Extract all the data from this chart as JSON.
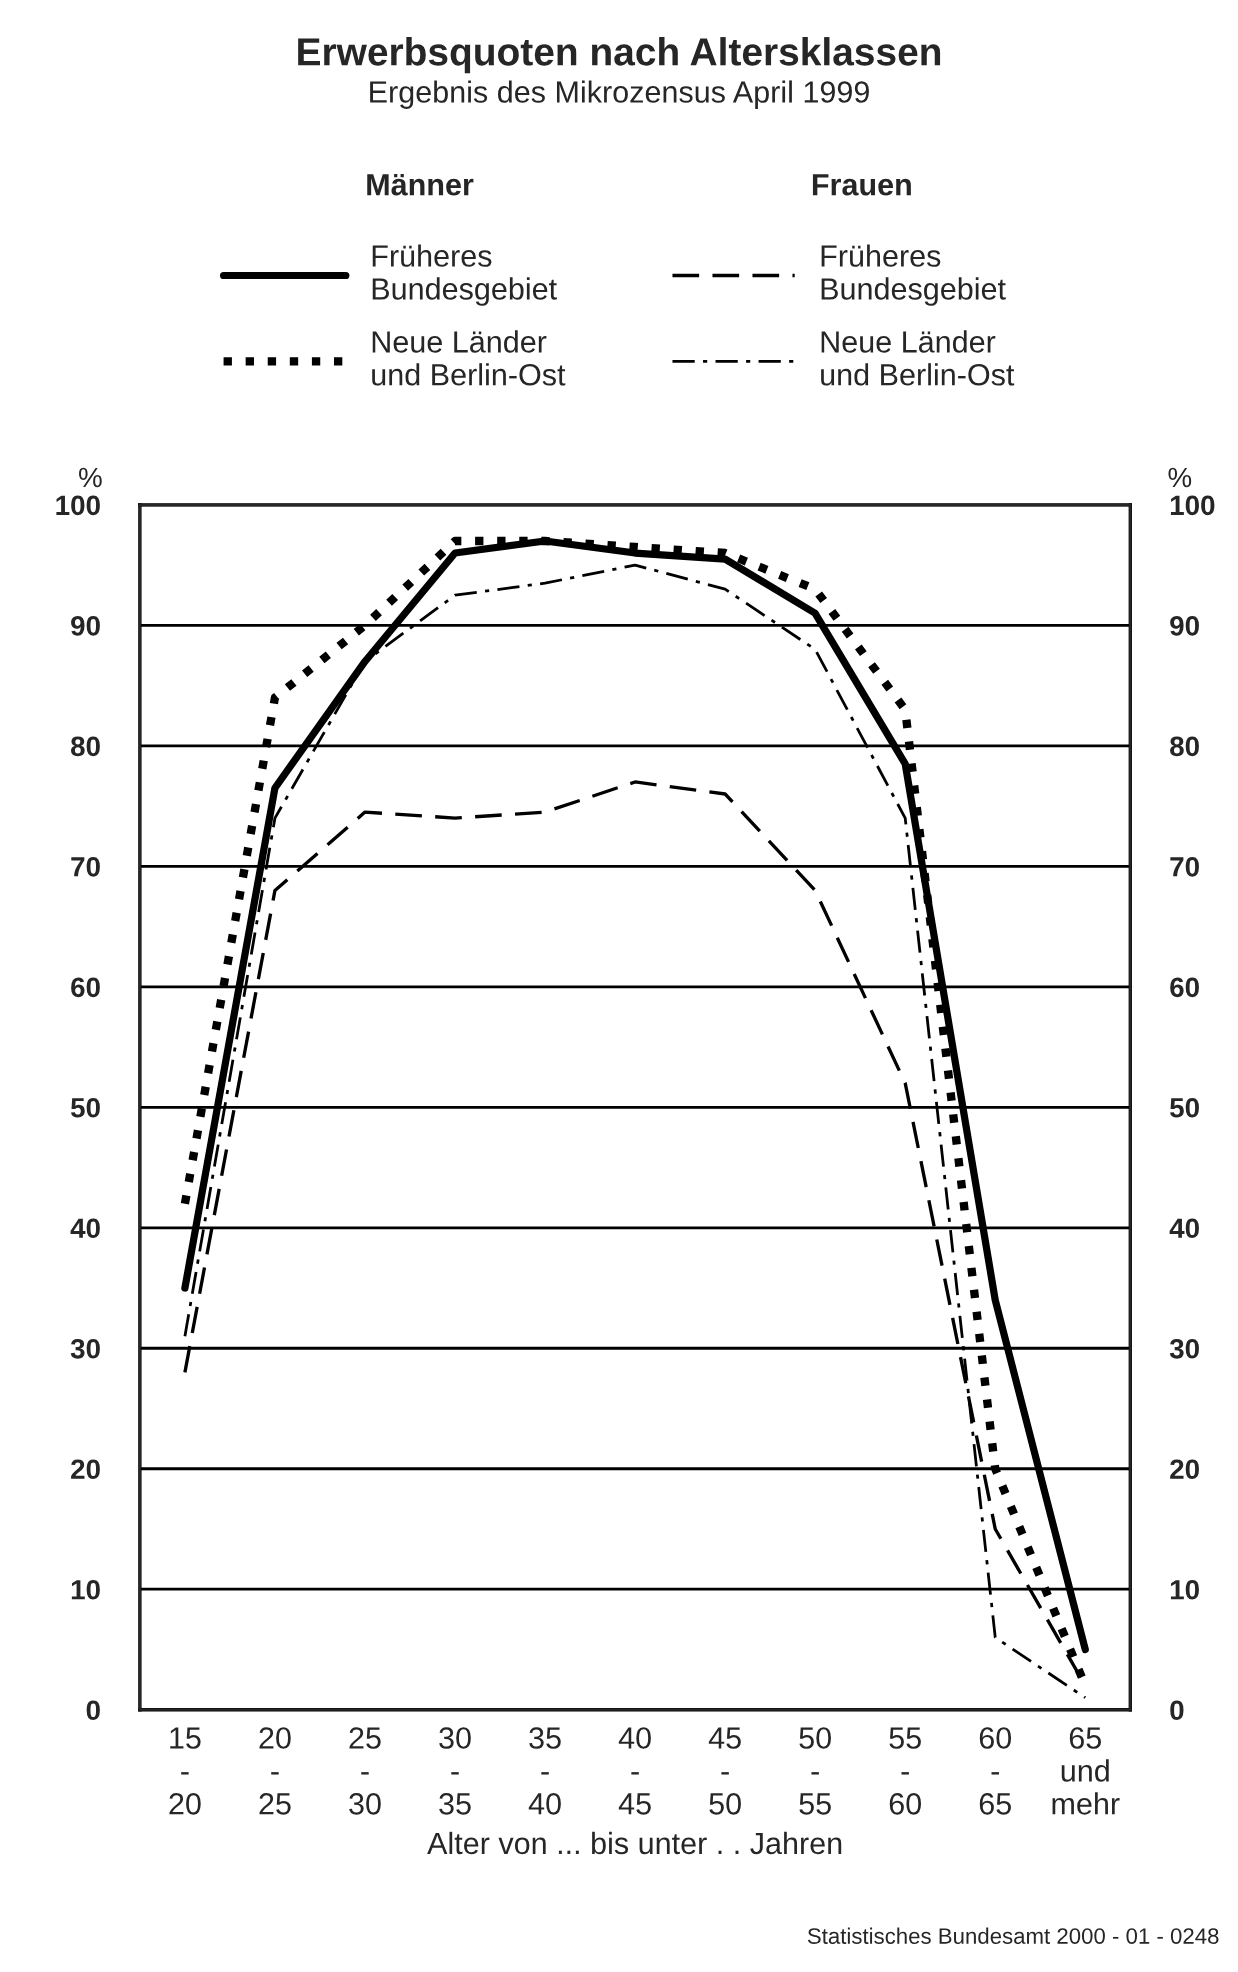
{
  "chart_data": {
    "type": "line",
    "title": "Erwerbsquoten nach Altersklassen",
    "subtitle": "Ergebnis des Mikrozensus April 1999",
    "xlabel": "Alter von ... bis unter . . Jahren",
    "ylabel": "%",
    "y2label": "%",
    "categories": [
      "15\n-\n20",
      "20\n-\n25",
      "25\n-\n30",
      "30\n-\n35",
      "35\n-\n40",
      "40\n-\n45",
      "45\n-\n50",
      "50\n-\n55",
      "55\n-\n60",
      "60\n-\n65",
      "65\nund\nmehr"
    ],
    "series": [
      {
        "name": "Früheres\nBundesgebiet",
        "color": "#000000",
        "line_style": "solid",
        "values": [
          35,
          76.5,
          87,
          96,
          97,
          96,
          95.5,
          91,
          78.5,
          34,
          5
        ]
      },
      {
        "name": "Neue Länder\nund Berlin-Ost",
        "color": "#000000",
        "line_style": "dotted",
        "values": [
          42,
          84,
          90,
          97,
          97,
          96.5,
          96,
          93,
          83,
          20,
          2
        ]
      },
      {
        "name": "Früheres\nBundesgebiet",
        "color": "#000000",
        "line_style": "dashed",
        "values": [
          28,
          68,
          74.5,
          74,
          74.5,
          77,
          76,
          68,
          52,
          15,
          2
        ]
      },
      {
        "name": "Neue Länder\nund Berlin-Ost",
        "color": "#000000",
        "line_style": "dashdot",
        "values": [
          31,
          74,
          87,
          92.5,
          93.5,
          95,
          93,
          88,
          74,
          6,
          1
        ]
      }
    ],
    "ylim": [
      0,
      100
    ],
    "yticks": [
      0,
      10,
      20,
      30,
      40,
      50,
      60,
      70,
      80,
      90,
      100
    ],
    "y2lim": [
      0,
      100
    ],
    "y2ticks": [
      0,
      10,
      20,
      30,
      40,
      50,
      60,
      70,
      80,
      90,
      100
    ],
    "grid": "y",
    "legend": "top",
    "marker": "none",
    "annotations": [
      "Männer",
      "Frauen",
      "Statistisches Bundesamt 2000 - 01 - 0248"
    ]
  }
}
